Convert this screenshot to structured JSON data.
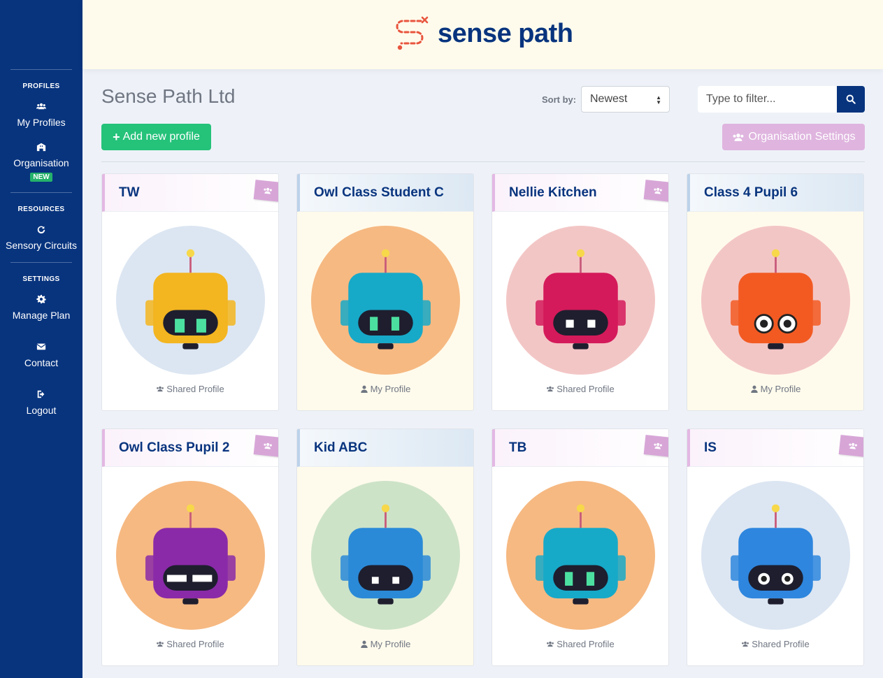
{
  "sidebar": {
    "profiles_heading": "PROFILES",
    "my_profiles": "My Profiles",
    "organisation": "Organisation",
    "new_badge": "NEW",
    "resources_heading": "RESOURCES",
    "sensory_circuits": "Sensory Circuits",
    "settings_heading": "SETTINGS",
    "manage_plan": "Manage Plan",
    "contact": "Contact",
    "logout": "Logout"
  },
  "header": {
    "logo_text": "sense path"
  },
  "toolbar": {
    "org_name": "Sense Path Ltd",
    "sort_label": "Sort by:",
    "sort_value": "Newest",
    "filter_placeholder": "Type to filter...",
    "add_profile": "Add new profile",
    "org_settings": "Organisation Settings"
  },
  "colors": {
    "sidebar": "#08347e",
    "accent_green": "#25c27a",
    "accent_pink": "#dfb5df",
    "header_bg": "#fffbec"
  },
  "profiles": [
    {
      "name": "TW",
      "type": "Shared Profile",
      "shared": true,
      "avatar_bg": "#dce6f2",
      "robot_color": "#f3b520"
    },
    {
      "name": "Owl Class Student C",
      "type": "My Profile",
      "shared": false,
      "avatar_bg": "#f6b982",
      "robot_color": "#17a9c8"
    },
    {
      "name": "Nellie Kitchen",
      "type": "Shared Profile",
      "shared": true,
      "avatar_bg": "#f3c6c6",
      "robot_color": "#d41a5a"
    },
    {
      "name": "Class 4 Pupil 6",
      "type": "My Profile",
      "shared": false,
      "avatar_bg": "#f3c6c6",
      "robot_color": "#f25a22"
    },
    {
      "name": "Owl Class Pupil 2",
      "type": "Shared Profile",
      "shared": true,
      "avatar_bg": "#f6b982",
      "robot_color": "#8a2aa8"
    },
    {
      "name": "Kid ABC",
      "type": "My Profile",
      "shared": false,
      "avatar_bg": "#cde3c8",
      "robot_color": "#2a8ad8"
    },
    {
      "name": "TB",
      "type": "Shared Profile",
      "shared": true,
      "avatar_bg": "#f6b982",
      "robot_color": "#17a9c8"
    },
    {
      "name": "IS",
      "type": "Shared Profile",
      "shared": true,
      "avatar_bg": "#dce6f2",
      "robot_color": "#2e86de"
    }
  ]
}
